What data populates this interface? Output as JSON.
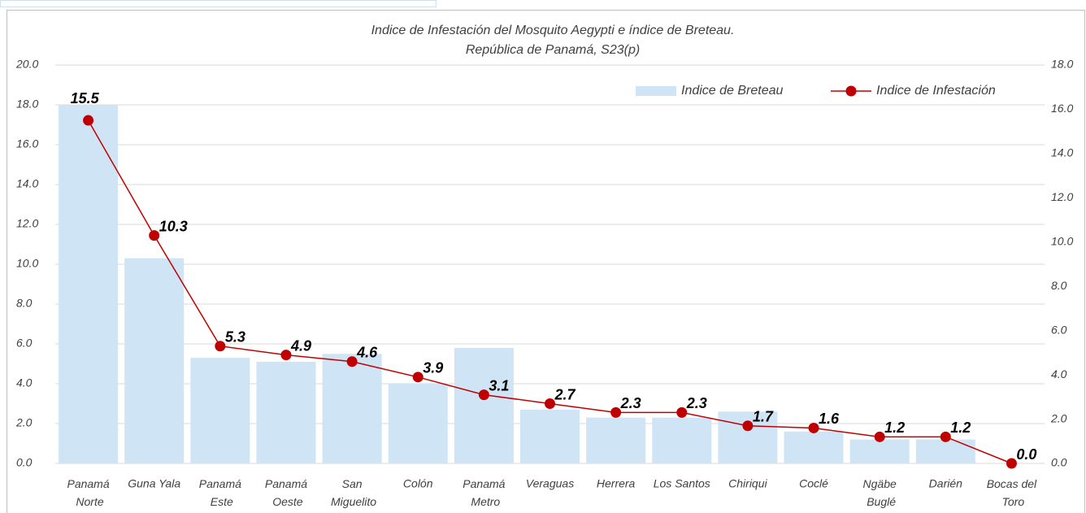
{
  "chart_data": {
    "type": "bar-line",
    "title": "Indice de Infestación del Mosquito Aegypti e índice de Breteau.",
    "subtitle": "República de Panamá, S23(p)",
    "categories": [
      "Panamá Norte",
      "Guna Yala",
      "Panamá Este",
      "Panamá Oeste",
      "San Miguelito",
      "Colón",
      "Panamá Metro",
      "Veraguas",
      "Herrera",
      "Los Santos",
      "Chiriqui",
      "Coclé",
      "Ngäbe Buglé",
      "Darién",
      "Bocas del Toro"
    ],
    "series": [
      {
        "name": "Indice de Breteau",
        "type": "bar",
        "color": "#cfe4f4",
        "axis": "y",
        "values": [
          18.0,
          10.3,
          5.3,
          5.1,
          5.5,
          4.0,
          5.8,
          2.7,
          2.3,
          2.3,
          2.6,
          1.6,
          1.2,
          1.2,
          0.0
        ]
      },
      {
        "name": "Indice de Infestación",
        "type": "line",
        "color": "#c00000",
        "axis": "y2",
        "values": [
          15.5,
          10.3,
          5.3,
          4.9,
          4.6,
          3.9,
          3.1,
          2.7,
          2.3,
          2.3,
          1.7,
          1.6,
          1.2,
          1.2,
          0.0
        ],
        "value_labels": [
          "15.5",
          "10.3",
          "5.3",
          "4.9",
          "4.6",
          "3.9",
          "3.1",
          "2.7",
          "2.3",
          "2.3",
          "1.7",
          "1.6",
          "1.2",
          "1.2",
          "0.0"
        ]
      }
    ],
    "ylim": [
      0,
      20
    ],
    "yticks": [
      {
        "value": 0,
        "label": "0.0"
      },
      {
        "value": 2,
        "label": "2.0"
      },
      {
        "value": 4,
        "label": "4.0"
      },
      {
        "value": 6,
        "label": "6.0"
      },
      {
        "value": 8,
        "label": "8.0"
      },
      {
        "value": 10,
        "label": "10.0"
      },
      {
        "value": 12,
        "label": "12.0"
      },
      {
        "value": 14,
        "label": "14.0"
      },
      {
        "value": 16,
        "label": "16.0"
      },
      {
        "value": 18,
        "label": "18.0"
      },
      {
        "value": 20,
        "label": "20.0"
      }
    ],
    "y2lim": [
      0,
      18
    ],
    "y2ticks": [
      {
        "value": 0,
        "label": "0.0"
      },
      {
        "value": 2,
        "label": "2.0"
      },
      {
        "value": 4,
        "label": "4.0"
      },
      {
        "value": 6,
        "label": "6.0"
      },
      {
        "value": 8,
        "label": "8.0"
      },
      {
        "value": 10,
        "label": "10.0"
      },
      {
        "value": 12,
        "label": "12.0"
      },
      {
        "value": 14,
        "label": "14.0"
      },
      {
        "value": 16,
        "label": "16.0"
      },
      {
        "value": 18,
        "label": "18.0"
      }
    ],
    "grid": true,
    "legend": "top-right"
  }
}
